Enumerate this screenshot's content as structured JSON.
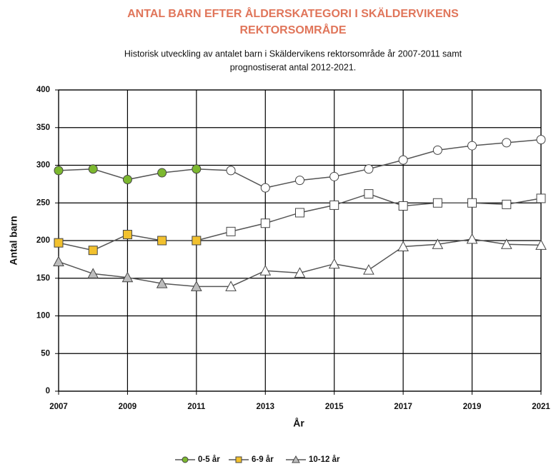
{
  "chart_data": {
    "type": "line",
    "title": [
      "ANTAL BARN EFTER ÅLDERSKATEGORI I SKÄLDERVIKENS",
      "REKTORSOMRÅDE"
    ],
    "subtitle": [
      "Historisk utveckling av antalet barn i Skäldervikens rektorsområde år 2007-2011 samt",
      "prognostiserat antal 2012-2021."
    ],
    "x_label": "År",
    "y_label": "Antal barn",
    "x": [
      2007,
      2008,
      2009,
      2010,
      2011,
      2012,
      2013,
      2014,
      2015,
      2016,
      2017,
      2018,
      2019,
      2020,
      2021
    ],
    "forecast_from": 2012,
    "forecast_marker_color": "#ffffff",
    "line_color": "#555555",
    "series": [
      {
        "name": "0-5 år",
        "color": "#7cb82f",
        "marker": "circle",
        "values": [
          293,
          295,
          281,
          290,
          295,
          293,
          270,
          280,
          285,
          295,
          307,
          320,
          326,
          330,
          334
        ]
      },
      {
        "name": "6-9 år",
        "color": "#f2c12e",
        "marker": "square",
        "values": [
          197,
          187,
          208,
          200,
          200,
          212,
          223,
          237,
          247,
          262,
          246,
          250,
          250,
          248,
          256
        ]
      },
      {
        "name": "10-12 år",
        "color": "#bdbdbd",
        "marker": "triangle",
        "values": [
          172,
          156,
          151,
          143,
          139,
          139,
          160,
          157,
          169,
          161,
          192,
          195,
          202,
          195,
          194
        ]
      }
    ],
    "xlim": [
      2007,
      2021
    ],
    "xticks": [
      2007,
      2009,
      2011,
      2013,
      2015,
      2017,
      2019,
      2021
    ],
    "ylim": [
      0,
      400
    ],
    "yticks": [
      0,
      50,
      100,
      150,
      200,
      250,
      300,
      350,
      400
    ],
    "grid": true,
    "legend": "bottom"
  }
}
